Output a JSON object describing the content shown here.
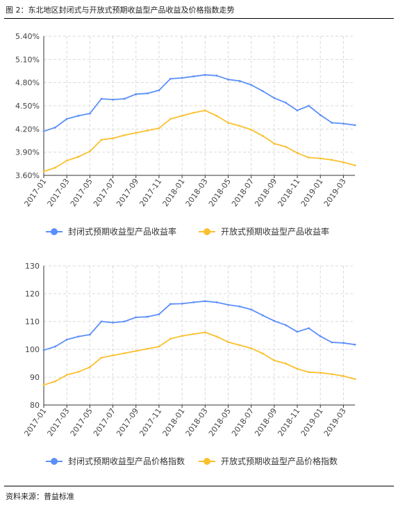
{
  "figure": {
    "title": "图 2：东北地区封闭式与开放式预期收益型产品收益及价格指数走势",
    "source": "资料来源：普益标准"
  },
  "colors": {
    "closed": "#5B8FF9",
    "open": "#FAC02E",
    "grid": "#d9d9d9",
    "axis": "#333333"
  },
  "chart_data": [
    {
      "type": "line",
      "x": [
        "2017-01",
        "2017-02",
        "2017-03",
        "2017-04",
        "2017-05",
        "2017-06",
        "2017-07",
        "2017-08",
        "2017-09",
        "2017-10",
        "2017-11",
        "2017-12",
        "2018-01",
        "2018-02",
        "2018-03",
        "2018-04",
        "2018-05",
        "2018-06",
        "2018-07",
        "2018-08",
        "2018-09",
        "2018-10",
        "2018-11",
        "2018-12",
        "2019-01",
        "2019-02",
        "2019-03",
        "2019-04"
      ],
      "x_tick_labels": [
        "2017-01",
        "2017-03",
        "2017-05",
        "2017-07",
        "2017-09",
        "2017-11",
        "2018-01",
        "2018-03",
        "2018-05",
        "2018-07",
        "2018-09",
        "2018-11",
        "2019-01",
        "2019-03"
      ],
      "y_tick_labels": [
        "3.60%",
        "3.90%",
        "4.20%",
        "4.50%",
        "4.80%",
        "5.10%",
        "5.40%"
      ],
      "ylim": [
        3.6,
        5.4
      ],
      "y_unit": "%",
      "grid": true,
      "legend_position": "bottom",
      "series": [
        {
          "name": "封闭式预期收益型产品收益率",
          "values": [
            4.17,
            4.22,
            4.33,
            4.37,
            4.4,
            4.59,
            4.58,
            4.59,
            4.65,
            4.66,
            4.7,
            4.85,
            4.86,
            4.88,
            4.9,
            4.89,
            4.84,
            4.82,
            4.77,
            4.69,
            4.6,
            4.54,
            4.44,
            4.5,
            4.38,
            4.28,
            4.27,
            4.25
          ]
        },
        {
          "name": "开放式预期收益型产品收益率",
          "values": [
            3.65,
            3.7,
            3.79,
            3.84,
            3.91,
            4.06,
            4.08,
            4.12,
            4.15,
            4.18,
            4.21,
            4.33,
            4.37,
            4.41,
            4.44,
            4.37,
            4.28,
            4.24,
            4.19,
            4.11,
            4.01,
            3.97,
            3.89,
            3.83,
            3.82,
            3.8,
            3.77,
            3.73
          ]
        }
      ]
    },
    {
      "type": "line",
      "x": [
        "2017-01",
        "2017-02",
        "2017-03",
        "2017-04",
        "2017-05",
        "2017-06",
        "2017-07",
        "2017-08",
        "2017-09",
        "2017-10",
        "2017-11",
        "2017-12",
        "2018-01",
        "2018-02",
        "2018-03",
        "2018-04",
        "2018-05",
        "2018-06",
        "2018-07",
        "2018-08",
        "2018-09",
        "2018-10",
        "2018-11",
        "2018-12",
        "2019-01",
        "2019-02",
        "2019-03",
        "2019-04"
      ],
      "x_tick_labels": [
        "2017-01",
        "2017-03",
        "2017-05",
        "2017-07",
        "2017-09",
        "2017-11",
        "2018-01",
        "2018-03",
        "2018-05",
        "2018-07",
        "2018-09",
        "2018-11",
        "2019-01",
        "2019-03"
      ],
      "y_tick_labels": [
        "80",
        "90",
        "100",
        "110",
        "120",
        "130"
      ],
      "ylim": [
        80,
        130
      ],
      "grid": true,
      "legend_position": "bottom",
      "series": [
        {
          "name": "封闭式预期收益型产品价格指数",
          "values": [
            99.7,
            101.0,
            103.5,
            104.6,
            105.3,
            110.0,
            109.6,
            110.0,
            111.5,
            111.7,
            112.6,
            116.3,
            116.4,
            116.9,
            117.3,
            116.9,
            116.0,
            115.4,
            114.3,
            112.2,
            110.2,
            108.7,
            106.3,
            107.6,
            104.7,
            102.5,
            102.3,
            101.7
          ]
        },
        {
          "name": "开放式预期收益型产品价格指数",
          "values": [
            87.2,
            88.5,
            90.8,
            91.9,
            93.6,
            97.0,
            97.8,
            98.6,
            99.4,
            100.2,
            101.0,
            103.8,
            104.8,
            105.5,
            106.1,
            104.6,
            102.6,
            101.5,
            100.4,
            98.5,
            96.0,
            94.9,
            93.0,
            91.8,
            91.6,
            91.1,
            90.4,
            89.3
          ]
        }
      ]
    }
  ]
}
